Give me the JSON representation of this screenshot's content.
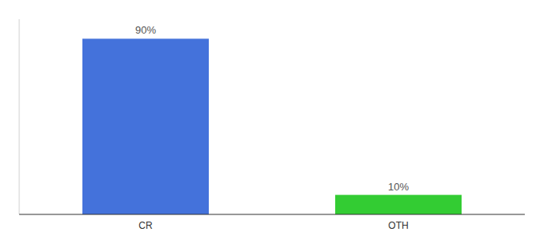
{
  "chart_data": {
    "type": "bar",
    "categories": [
      "CR",
      "OTH"
    ],
    "values": [
      90,
      10
    ],
    "value_labels": [
      "90%",
      "10%"
    ],
    "data_labels": true,
    "colors": [
      "#4472db",
      "#33cc33"
    ],
    "ylim": [
      0,
      100
    ],
    "tick_labels": "x"
  }
}
